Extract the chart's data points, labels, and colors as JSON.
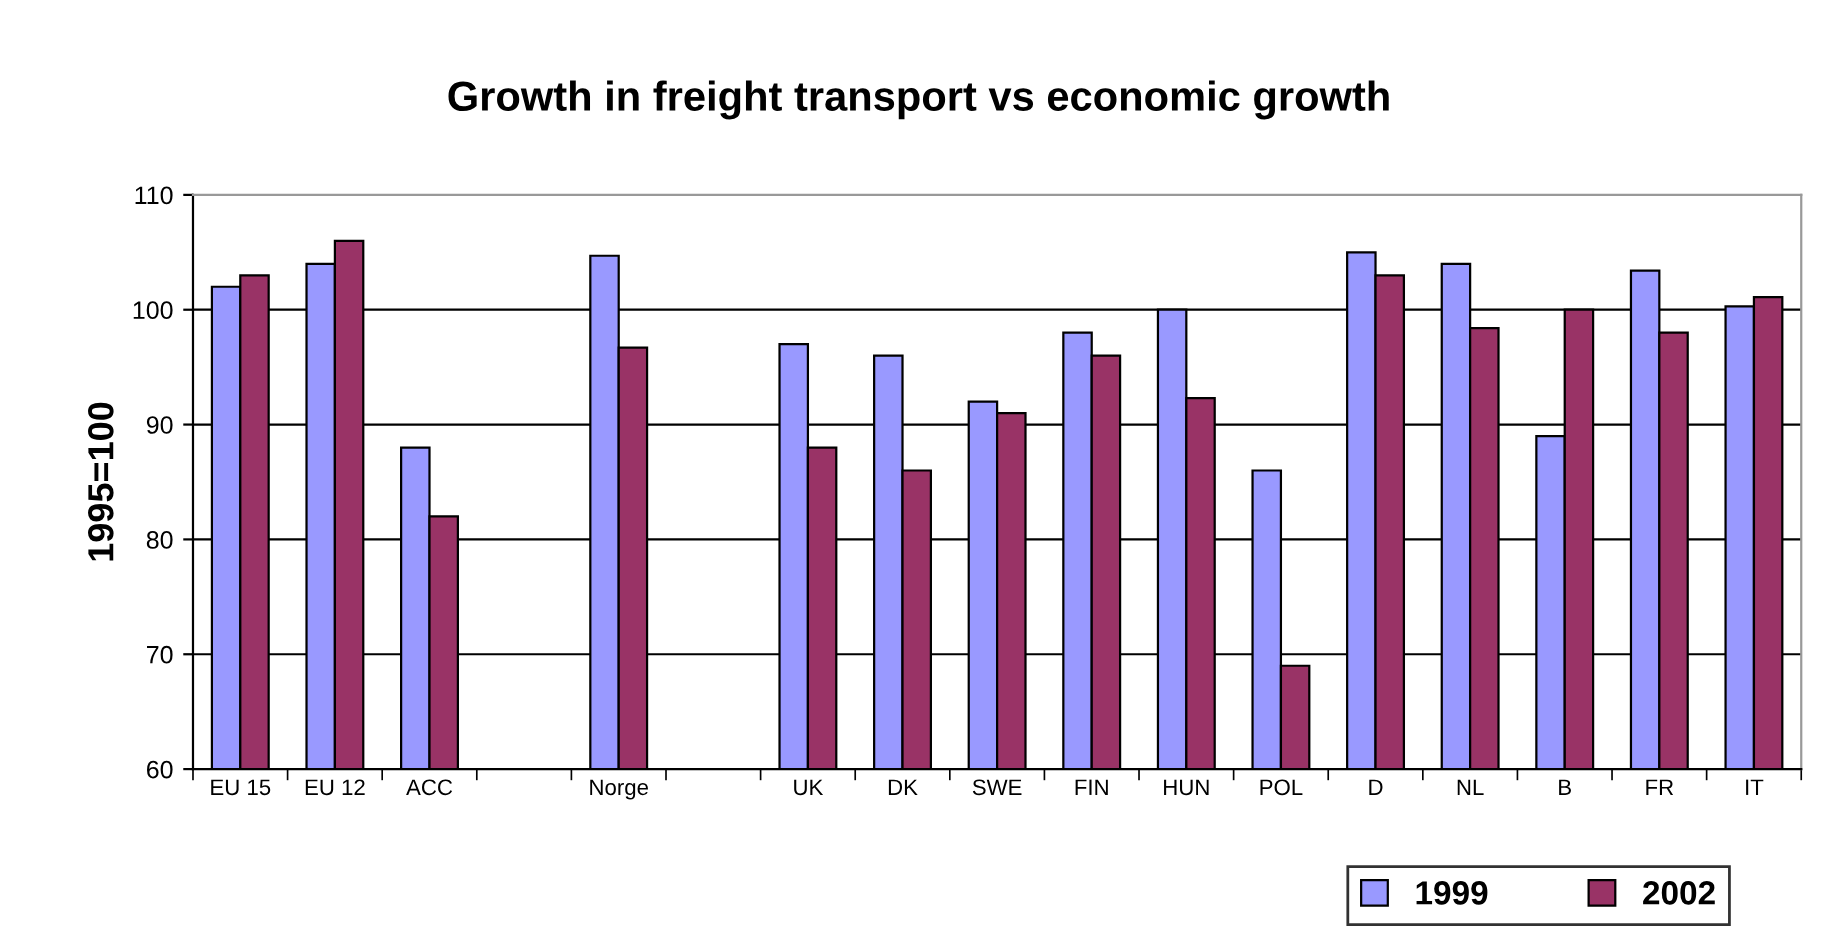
{
  "chart_data": {
    "type": "bar",
    "title": "Growth in freight transport vs economic growth",
    "ylabel": "1995=100",
    "categories": [
      "EU 15",
      "EU 12",
      "ACC",
      null,
      "Norge",
      null,
      "UK",
      "DK",
      "SWE",
      "FIN",
      "HUN",
      "POL",
      "D",
      "NL",
      "B",
      "FR",
      "IT"
    ],
    "series": [
      {
        "name": "1999",
        "color": "#9999ff",
        "values": [
          102,
          104,
          88,
          null,
          104.7,
          null,
          97,
          96,
          92,
          98,
          100,
          86,
          105,
          104,
          89,
          103.4,
          100.3
        ]
      },
      {
        "name": "2002",
        "color": "#993366",
        "values": [
          103,
          106,
          82,
          null,
          96.7,
          null,
          88,
          86,
          91,
          96,
          92.3,
          69,
          103,
          98.4,
          100,
          98,
          101.1
        ]
      }
    ],
    "ylim": [
      60,
      110
    ],
    "yticks": [
      60,
      70,
      80,
      90,
      100,
      110
    ],
    "grid": "y",
    "legend": "bottom right"
  }
}
